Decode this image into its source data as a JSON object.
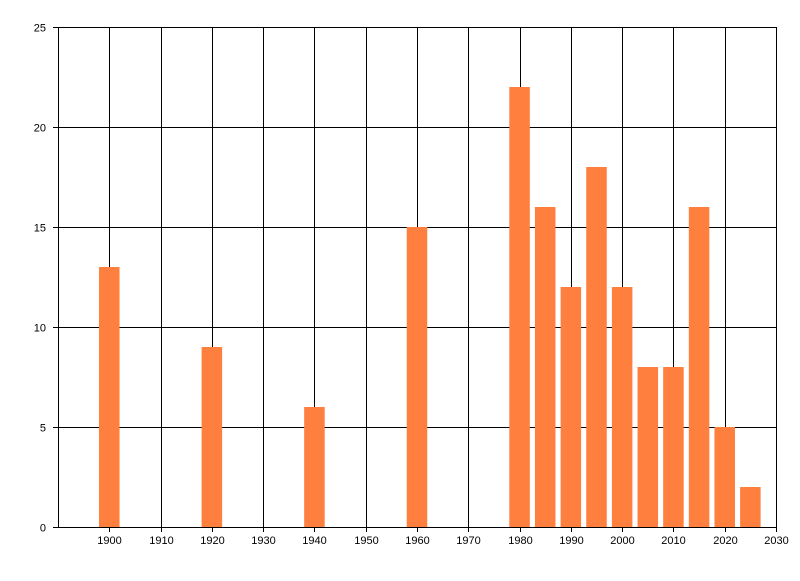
{
  "chart_data": {
    "type": "bar",
    "title": "",
    "xlabel": "",
    "ylabel": "",
    "xlim": [
      1890,
      2030
    ],
    "ylim": [
      0,
      25
    ],
    "bar_width": 4,
    "x_ticks": [
      1900,
      1910,
      1920,
      1930,
      1940,
      1950,
      1960,
      1970,
      1980,
      1990,
      2000,
      2010,
      2020,
      2030
    ],
    "y_ticks": [
      0,
      5,
      10,
      15,
      20,
      25
    ],
    "grid": true,
    "legend": "none",
    "bar_color": "#FF7F3F",
    "x": [
      1900,
      1920,
      1940,
      1960,
      1980,
      1985,
      1990,
      1995,
      2000,
      2005,
      2010,
      2015,
      2020,
      2025
    ],
    "values": [
      13,
      9,
      6,
      15,
      22,
      16,
      12,
      18,
      12,
      8,
      8,
      16,
      5,
      2
    ]
  }
}
